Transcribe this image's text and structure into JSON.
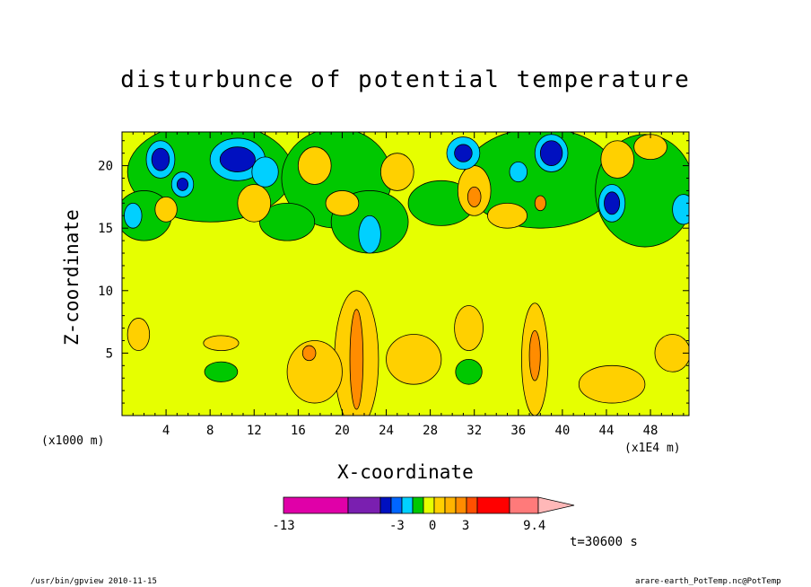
{
  "chart_data": {
    "type": "heatmap",
    "title": "disturbunce of potential temperature",
    "xlabel": "X-coordinate",
    "ylabel": "Z-coordinate",
    "x_unit_left": "(x1000 m)",
    "x_unit_right": "(x1E4 m)",
    "x_ticks": [
      4,
      8,
      12,
      16,
      20,
      24,
      28,
      32,
      36,
      40,
      44,
      48
    ],
    "y_ticks": [
      5,
      10,
      15,
      20
    ],
    "xlim": [
      0,
      51.5
    ],
    "ylim": [
      0,
      22.7
    ],
    "colorbar": {
      "colors": [
        "#e000a8",
        "#7a1fb0",
        "#0010c0",
        "#0066ff",
        "#00d0ff",
        "#00c800",
        "#e6ff00",
        "#ffd000",
        "#ffb400",
        "#ff8c00",
        "#ff5000",
        "#ff0000",
        "#ff7a7a",
        "#ffb8b8"
      ],
      "labels": [
        {
          "text": "-13",
          "at": 0
        },
        {
          "text": "-3",
          "at": 0.445
        },
        {
          "text": "0",
          "at": 0.585
        },
        {
          "text": "3",
          "at": 0.715
        },
        {
          "text": "9.4",
          "at": 0.985
        }
      ]
    },
    "regions": [
      {
        "level": "pos1",
        "x": 21.3,
        "z": 4.5,
        "rx": 2.0,
        "rz": 5.5
      },
      {
        "level": "pos1",
        "x": 37.5,
        "z": 4.5,
        "rx": 1.2,
        "rz": 4.5
      },
      {
        "level": "pos1",
        "x": 26.5,
        "z": 4.5,
        "rx": 2.5,
        "rz": 2.0
      },
      {
        "level": "pos1",
        "x": 17.5,
        "z": 3.5,
        "rx": 2.5,
        "rz": 2.5
      },
      {
        "level": "pos1",
        "x": 31.5,
        "z": 7.0,
        "rx": 1.3,
        "rz": 1.8
      },
      {
        "level": "pos1",
        "x": 44.5,
        "z": 2.5,
        "rx": 3.0,
        "rz": 1.5
      },
      {
        "level": "pos1",
        "x": 50.0,
        "z": 5.0,
        "rx": 1.6,
        "rz": 1.5
      },
      {
        "level": "pos1",
        "x": 1.5,
        "z": 6.5,
        "rx": 1.0,
        "rz": 1.3
      },
      {
        "level": "pos1",
        "x": 9.0,
        "z": 5.8,
        "rx": 1.6,
        "rz": 0.6
      },
      {
        "level": "pos2",
        "x": 21.3,
        "z": 4.5,
        "rx": 0.6,
        "rz": 4.0
      },
      {
        "level": "pos2",
        "x": 17.0,
        "z": 5.0,
        "rx": 0.6,
        "rz": 0.6
      },
      {
        "level": "pos2",
        "x": 37.5,
        "z": 4.8,
        "rx": 0.5,
        "rz": 2.0
      },
      {
        "level": "neg1",
        "x": 9.0,
        "z": 3.5,
        "rx": 1.5,
        "rz": 0.8
      },
      {
        "level": "neg1",
        "x": 31.5,
        "z": 3.5,
        "rx": 1.2,
        "rz": 1.0
      },
      {
        "level": "neg1",
        "x": 22.5,
        "z": 4.5,
        "rx": 0.5,
        "rz": 1.0
      },
      {
        "level": "neg1",
        "x": 8.0,
        "z": 19.5,
        "rx": 7.5,
        "rz": 4.0
      },
      {
        "level": "neg1",
        "x": 19.5,
        "z": 19.0,
        "rx": 5.0,
        "rz": 4.0
      },
      {
        "level": "neg1",
        "x": 22.5,
        "z": 15.5,
        "rx": 3.5,
        "rz": 2.5
      },
      {
        "level": "neg1",
        "x": 38.0,
        "z": 19.0,
        "rx": 7.0,
        "rz": 4.0
      },
      {
        "level": "neg1",
        "x": 47.5,
        "z": 18.0,
        "rx": 4.5,
        "rz": 4.5
      },
      {
        "level": "neg1",
        "x": 2.0,
        "z": 16.0,
        "rx": 2.5,
        "rz": 2.0
      },
      {
        "level": "neg1",
        "x": 15.0,
        "z": 15.5,
        "rx": 2.5,
        "rz": 1.5
      },
      {
        "level": "neg1",
        "x": 29.0,
        "z": 17.0,
        "rx": 3.0,
        "rz": 1.8
      },
      {
        "level": "pos1",
        "x": 4.0,
        "z": 16.5,
        "rx": 1.0,
        "rz": 1.0
      },
      {
        "level": "pos1",
        "x": 12.0,
        "z": 17.0,
        "rx": 1.5,
        "rz": 1.5
      },
      {
        "level": "pos1",
        "x": 17.5,
        "z": 20.0,
        "rx": 1.5,
        "rz": 1.5
      },
      {
        "level": "pos1",
        "x": 25.0,
        "z": 19.5,
        "rx": 1.5,
        "rz": 1.5
      },
      {
        "level": "pos1",
        "x": 32.0,
        "z": 18.0,
        "rx": 1.5,
        "rz": 2.0
      },
      {
        "level": "pos1",
        "x": 35.0,
        "z": 16.0,
        "rx": 1.8,
        "rz": 1.0
      },
      {
        "level": "pos1",
        "x": 45.0,
        "z": 20.5,
        "rx": 1.5,
        "rz": 1.5
      },
      {
        "level": "pos1",
        "x": 48.0,
        "z": 21.5,
        "rx": 1.5,
        "rz": 1.0
      },
      {
        "level": "pos1",
        "x": 20.0,
        "z": 17.0,
        "rx": 1.5,
        "rz": 1.0
      },
      {
        "level": "pos2",
        "x": 32.0,
        "z": 17.5,
        "rx": 0.6,
        "rz": 0.8
      },
      {
        "level": "pos2",
        "x": 38.0,
        "z": 17.0,
        "rx": 0.5,
        "rz": 0.6
      },
      {
        "level": "neg2",
        "x": 3.5,
        "z": 20.5,
        "rx": 1.3,
        "rz": 1.5
      },
      {
        "level": "neg2",
        "x": 10.5,
        "z": 20.5,
        "rx": 2.5,
        "rz": 1.7
      },
      {
        "level": "neg2",
        "x": 13.0,
        "z": 19.5,
        "rx": 1.2,
        "rz": 1.2
      },
      {
        "level": "neg2",
        "x": 5.5,
        "z": 18.5,
        "rx": 1.0,
        "rz": 1.0
      },
      {
        "level": "neg2",
        "x": 1.0,
        "z": 16.0,
        "rx": 0.8,
        "rz": 1.0
      },
      {
        "level": "neg2",
        "x": 39.0,
        "z": 21.0,
        "rx": 1.5,
        "rz": 1.5
      },
      {
        "level": "neg2",
        "x": 31.0,
        "z": 21.0,
        "rx": 1.5,
        "rz": 1.3
      },
      {
        "level": "neg2",
        "x": 44.5,
        "z": 17.0,
        "rx": 1.2,
        "rz": 1.5
      },
      {
        "level": "neg2",
        "x": 51.0,
        "z": 16.5,
        "rx": 1.0,
        "rz": 1.2
      },
      {
        "level": "neg2",
        "x": 22.5,
        "z": 14.5,
        "rx": 1.0,
        "rz": 1.5
      },
      {
        "level": "neg2",
        "x": 36.0,
        "z": 19.5,
        "rx": 0.8,
        "rz": 0.8
      },
      {
        "level": "neg3",
        "x": 3.5,
        "z": 20.5,
        "rx": 0.8,
        "rz": 0.9
      },
      {
        "level": "neg3",
        "x": 10.5,
        "z": 20.5,
        "rx": 1.6,
        "rz": 1.0
      },
      {
        "level": "neg3",
        "x": 39.0,
        "z": 21.0,
        "rx": 1.0,
        "rz": 1.0
      },
      {
        "level": "neg3",
        "x": 44.5,
        "z": 17.0,
        "rx": 0.7,
        "rz": 0.9
      },
      {
        "level": "neg3",
        "x": 31.0,
        "z": 21.0,
        "rx": 0.8,
        "rz": 0.7
      },
      {
        "level": "neg3",
        "x": 5.5,
        "z": 18.5,
        "rx": 0.5,
        "rz": 0.5
      }
    ]
  },
  "timestamp": "t=30600 s",
  "footer_left": "/usr/bin/gpview  2010-11-15",
  "footer_right": "arare-earth_PotTemp.nc@PotTemp"
}
